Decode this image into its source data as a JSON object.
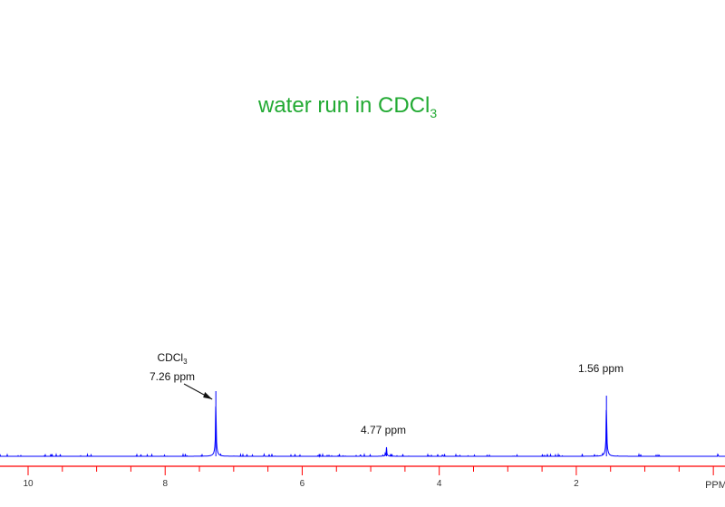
{
  "chart_data": {
    "type": "line",
    "title": "water run in CDCl",
    "title_subscript": "3",
    "xlabel": "PPM",
    "xlim": [
      10.41,
      -0.17
    ],
    "x_reversed": true,
    "major_ticks": [
      10,
      8,
      6,
      4,
      2
    ],
    "minor_tick_step": 0.5,
    "tick_labels": [
      "10",
      "8",
      "6",
      "4",
      "2"
    ],
    "grid": false,
    "colors": {
      "spectrum": "#0000ff",
      "axis": "#ff0000",
      "title": "#22aa33",
      "text": "#111111"
    },
    "peaks": [
      {
        "ppm": 7.26,
        "relative_intensity": 1.0
      },
      {
        "ppm": 4.77,
        "relative_intensity": 0.14
      },
      {
        "ppm": 1.56,
        "relative_intensity": 0.93
      }
    ],
    "annotations": [
      {
        "line1": "CDCl",
        "line1_sub": "3",
        "line2": "7.26 ppm",
        "ppm": 7.26,
        "arrow": true
      },
      {
        "line1": "4.77 ppm",
        "ppm": 4.77,
        "arrow": false
      },
      {
        "line1": "1.56 ppm",
        "ppm": 1.56,
        "arrow": false
      }
    ]
  }
}
